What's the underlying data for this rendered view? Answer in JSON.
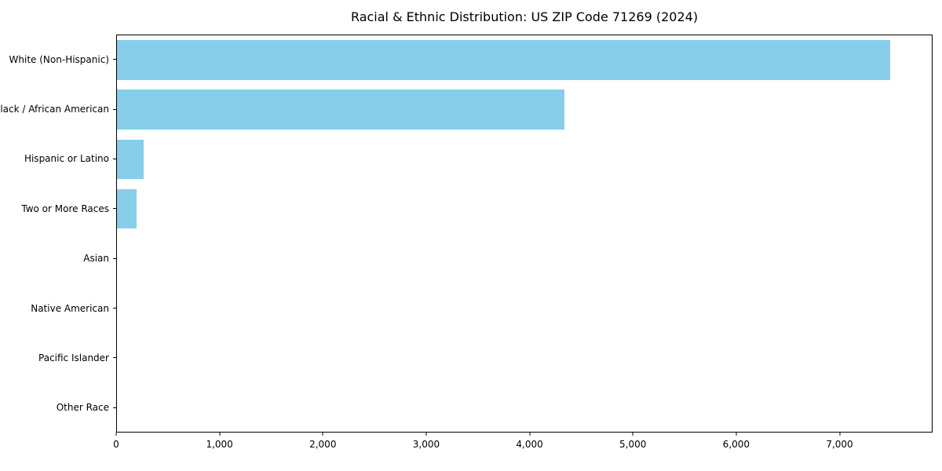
{
  "chart_data": {
    "type": "bar",
    "orientation": "horizontal",
    "title": "Racial & Ethnic Distribution: US ZIP Code 71269 (2024)",
    "categories": [
      "White (Non-Hispanic)",
      "Black / African American",
      "Hispanic or Latino",
      "Two or More Races",
      "Asian",
      "Native American",
      "Pacific Islander",
      "Other Race"
    ],
    "values": [
      7500,
      4340,
      260,
      190,
      0,
      0,
      0,
      0
    ],
    "bar_color": "#87CEEB",
    "xlim": [
      0,
      7900
    ],
    "x_ticks": [
      0,
      1000,
      2000,
      3000,
      4000,
      5000,
      6000,
      7000
    ],
    "x_tick_labels": [
      "0",
      "1,000",
      "2,000",
      "3,000",
      "4,000",
      "5,000",
      "6,000",
      "7,000"
    ],
    "xlabel": "",
    "ylabel": "",
    "grid": false,
    "legend": false
  }
}
